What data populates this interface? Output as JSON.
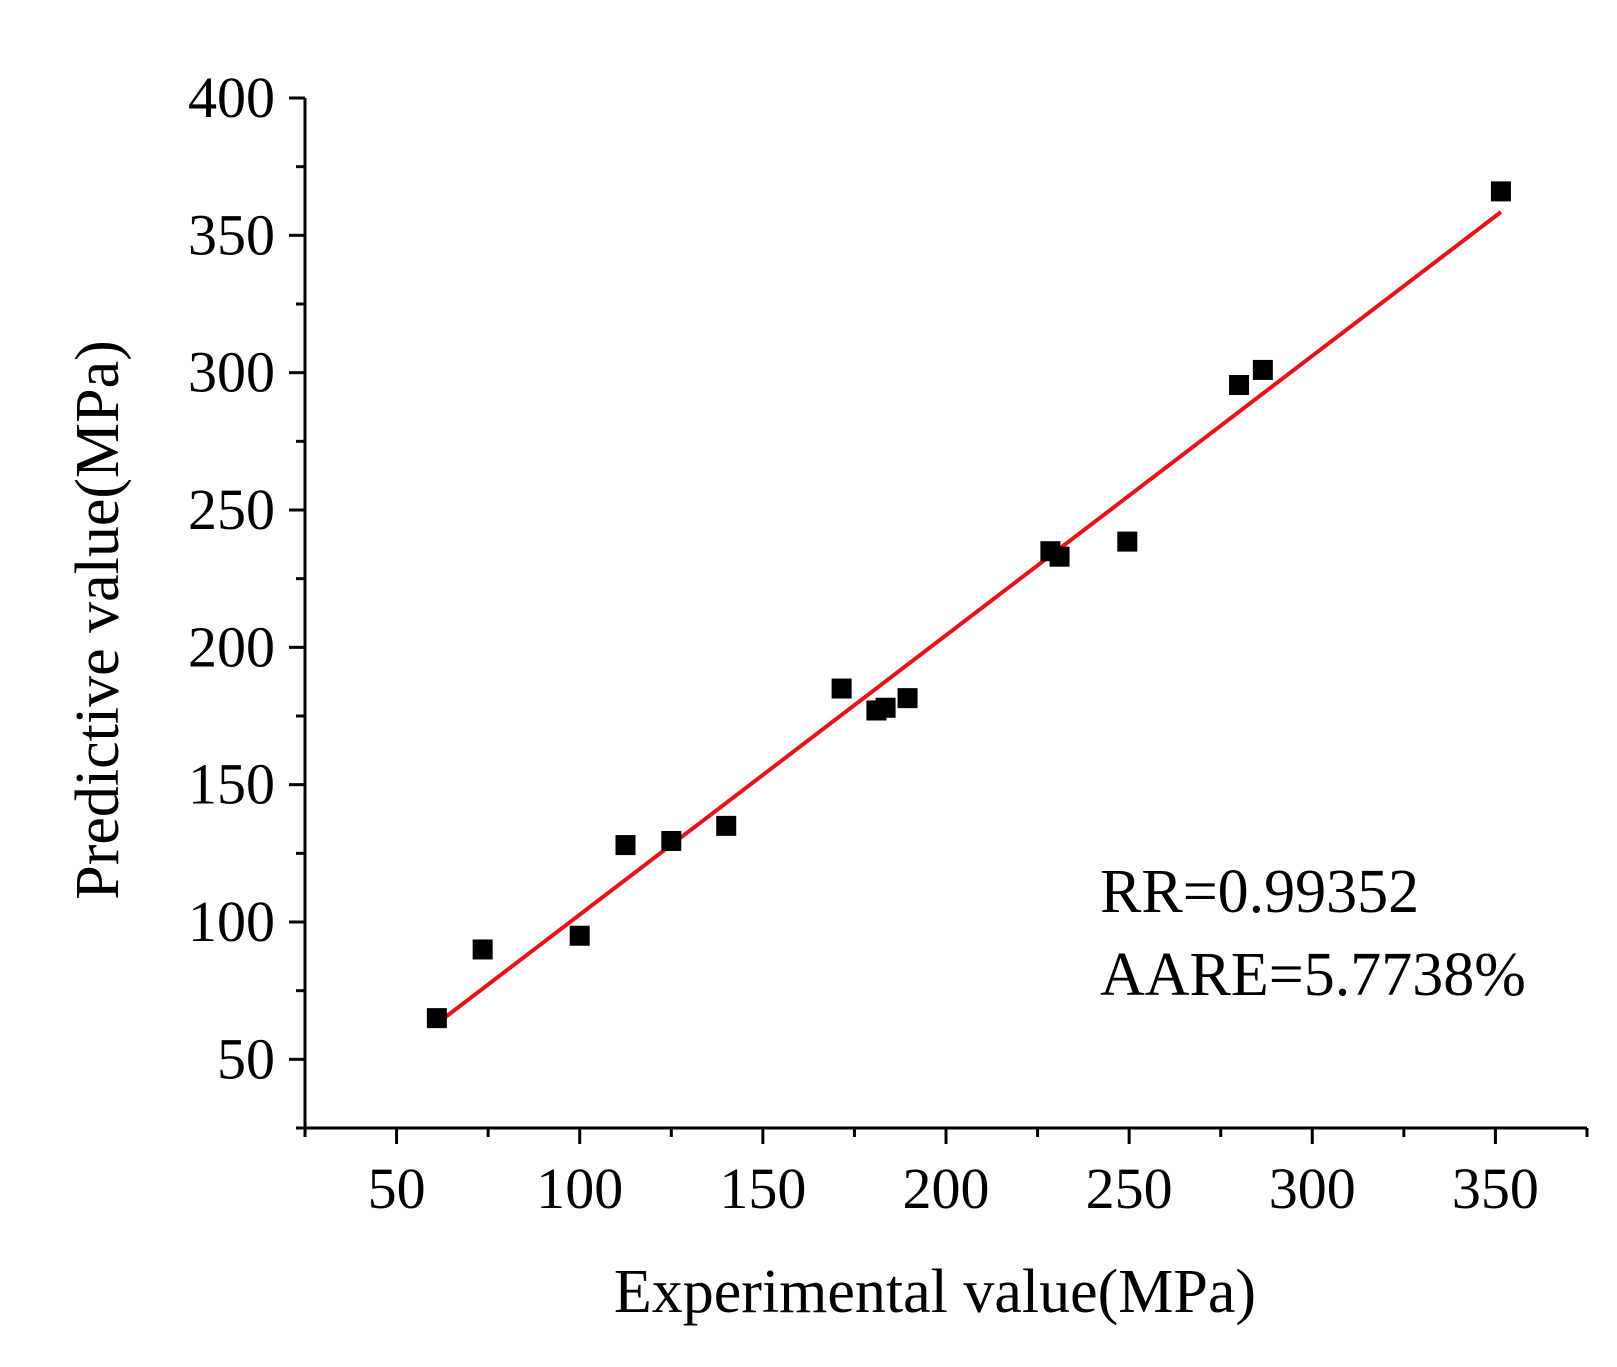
{
  "chart_data": {
    "type": "scatter",
    "xlabel": "Experimental value(MPa)",
    "ylabel": "Predictive value(MPa)",
    "xlim": [
      25,
      375
    ],
    "ylim": [
      25,
      400
    ],
    "xticks": [
      50,
      100,
      150,
      200,
      250,
      300,
      350
    ],
    "yticks": [
      50,
      100,
      150,
      200,
      250,
      300,
      350,
      400
    ],
    "grid": false,
    "series": [
      {
        "marker": "square",
        "color": "#000000",
        "points": [
          {
            "x": 61,
            "y": 65
          },
          {
            "x": 73.5,
            "y": 90
          },
          {
            "x": 100,
            "y": 95
          },
          {
            "x": 112.5,
            "y": 128
          },
          {
            "x": 125,
            "y": 129.5
          },
          {
            "x": 140,
            "y": 135
          },
          {
            "x": 171.5,
            "y": 185
          },
          {
            "x": 181,
            "y": 177
          },
          {
            "x": 183.5,
            "y": 178
          },
          {
            "x": 189.5,
            "y": 181.5
          },
          {
            "x": 228.5,
            "y": 235
          },
          {
            "x": 231,
            "y": 233
          },
          {
            "x": 249.5,
            "y": 238.5
          },
          {
            "x": 280,
            "y": 295.5
          },
          {
            "x": 286.5,
            "y": 301
          },
          {
            "x": 351.5,
            "y": 366
          }
        ]
      }
    ],
    "fit_line": {
      "color": "#e8121a",
      "x": [
        61,
        351.5
      ],
      "y": [
        63,
        358.5
      ]
    },
    "annotations": [
      "RR=0.99352",
      "AARE=5.7738%"
    ]
  }
}
